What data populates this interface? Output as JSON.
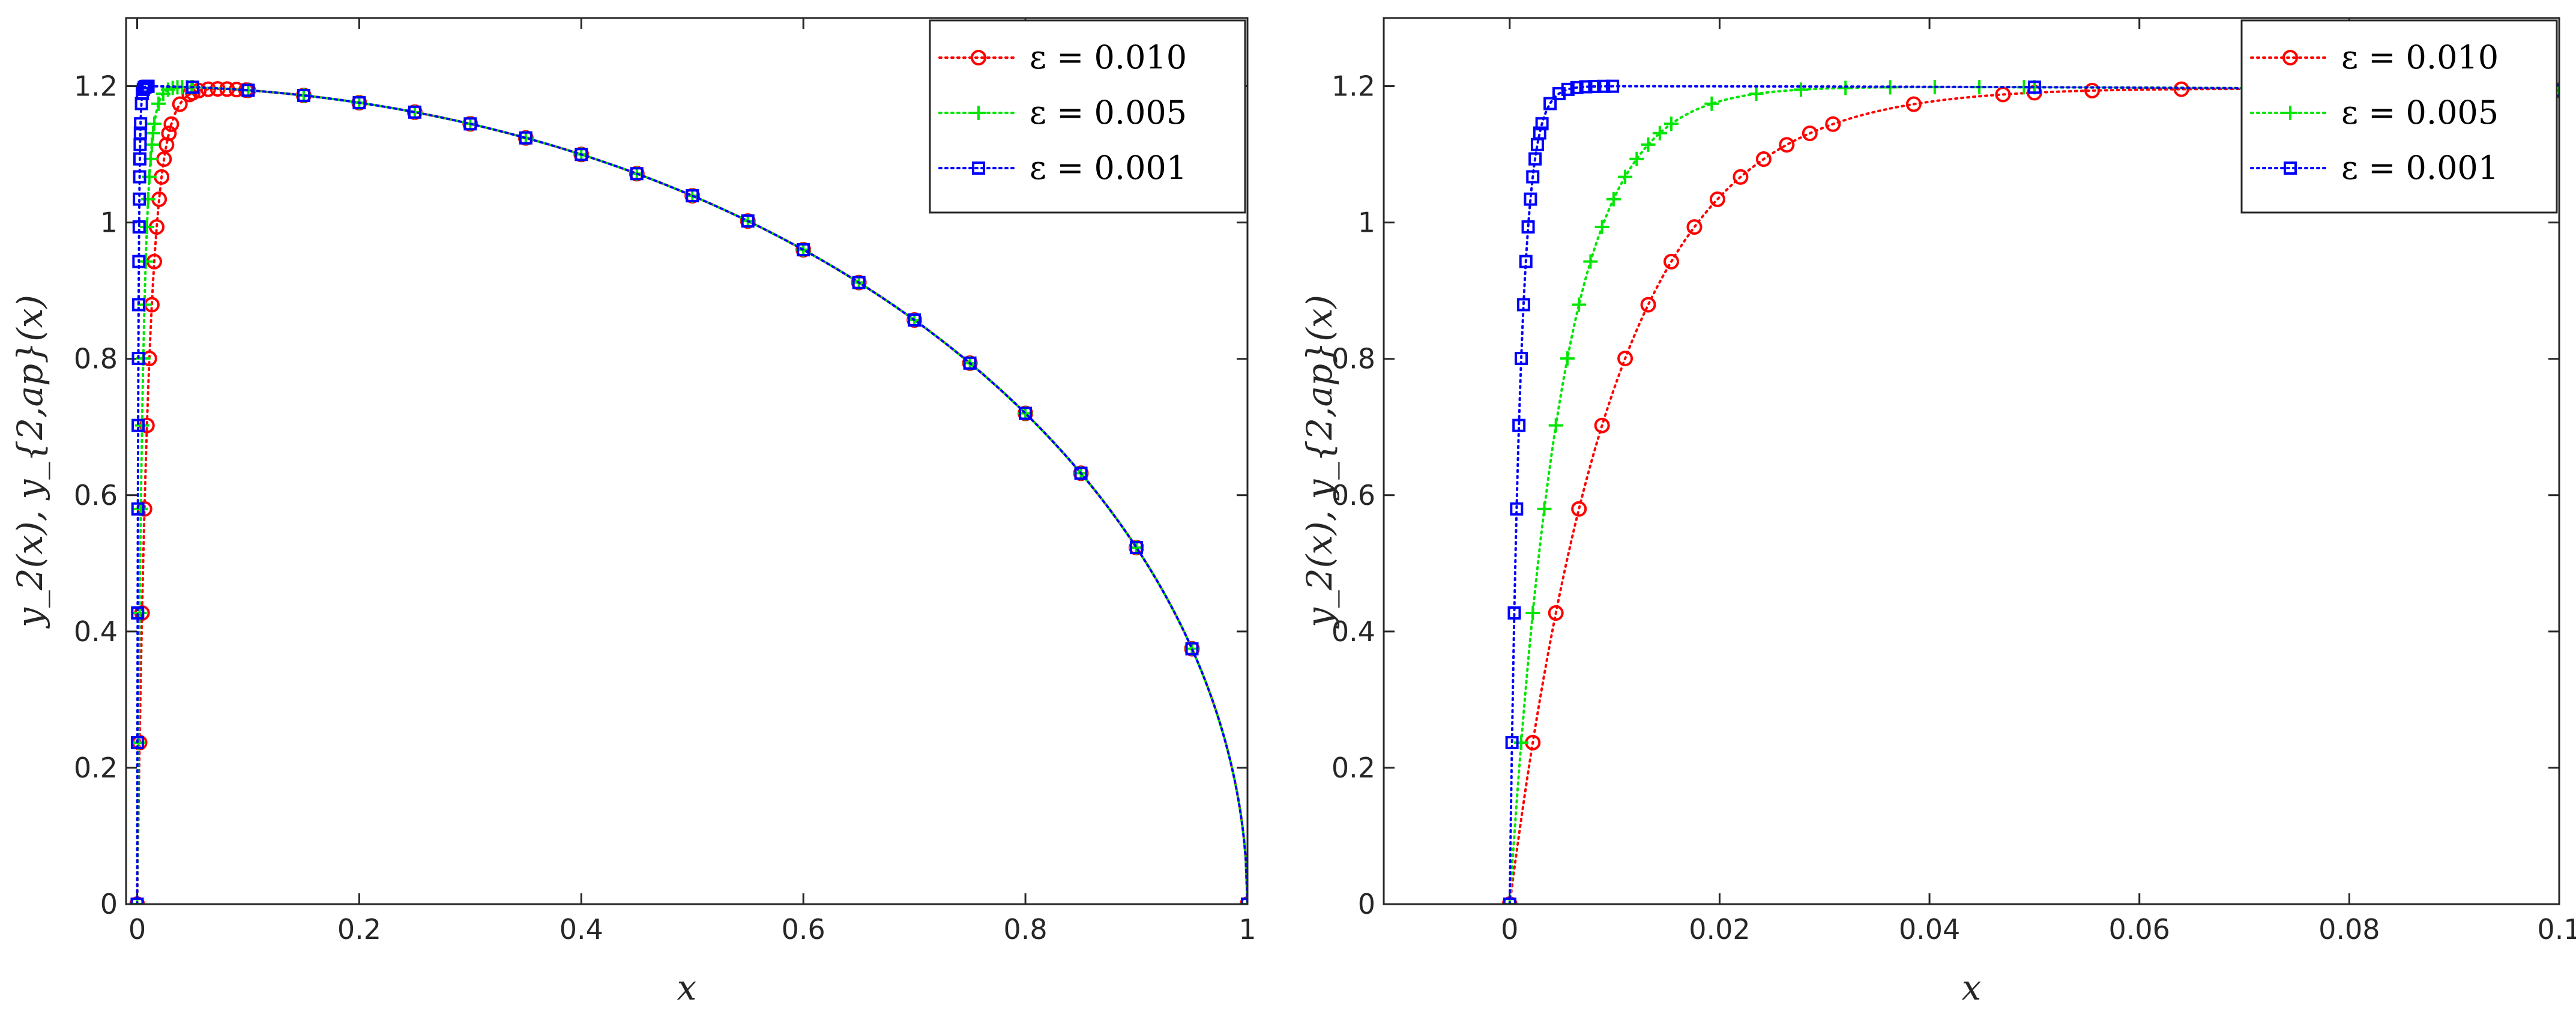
{
  "figure": {
    "panels": 2
  },
  "chart_data": [
    {
      "type": "line",
      "panel": "left",
      "title": "",
      "xlabel": "x",
      "ylabel": "y_2(x), y_{2,ap}(x)",
      "xlim": [
        -0.01,
        1.0
      ],
      "ylim": [
        0,
        1.3
      ],
      "xticks": [
        0,
        0.2,
        0.4,
        0.6,
        0.8,
        1
      ],
      "xtick_labels": [
        "0",
        "0.2",
        "0.4",
        "0.6",
        "0.8",
        "1"
      ],
      "yticks": [
        0,
        0.2,
        0.4,
        0.6,
        0.8,
        1,
        1.2
      ],
      "ytick_labels": [
        "0",
        "0.2",
        "0.4",
        "0.6",
        "0.8",
        "1",
        "1.2"
      ],
      "grid": false,
      "legend_position": "top-right",
      "series": [
        {
          "name": "ε = 0.010",
          "eps": 0.01,
          "color": "#ff0000",
          "marker": "circle",
          "linestyle": "dotted"
        },
        {
          "name": "ε = 0.005",
          "eps": 0.005,
          "color": "#00e600",
          "marker": "plus",
          "linestyle": "dotted"
        },
        {
          "name": "ε = 0.001",
          "eps": 0.001,
          "color": "#0000ff",
          "marker": "square",
          "linestyle": "dotted"
        }
      ],
      "model": "y2(x) ≈ 1.2·sqrt(1 - x^2)·(1 - e^(-x/ε)); markers dense near x=0, then every 0.05"
    },
    {
      "type": "line",
      "panel": "right",
      "title": "",
      "xlabel": "x",
      "ylabel": "y_2(x), y_{2,ap}(x)",
      "xlim": [
        -0.012,
        0.1
      ],
      "ylim": [
        0,
        1.3
      ],
      "xticks": [
        0,
        0.02,
        0.04,
        0.06,
        0.08,
        0.1
      ],
      "xtick_labels": [
        "0",
        "0.02",
        "0.04",
        "0.06",
        "0.08",
        "0.1"
      ],
      "yticks": [
        0,
        0.2,
        0.4,
        0.6,
        0.8,
        1,
        1.2
      ],
      "ytick_labels": [
        "0",
        "0.2",
        "0.4",
        "0.6",
        "0.8",
        "1",
        "1.2"
      ],
      "grid": false,
      "legend_position": "top-right",
      "series": [
        {
          "name": "ε = 0.010",
          "eps": 0.01,
          "color": "#ff0000",
          "marker": "circle",
          "linestyle": "dotted"
        },
        {
          "name": "ε = 0.005",
          "eps": 0.005,
          "color": "#00e600",
          "marker": "plus",
          "linestyle": "dotted"
        },
        {
          "name": "ε = 0.001",
          "eps": 0.001,
          "color": "#0000ff",
          "marker": "square",
          "linestyle": "dotted"
        }
      ],
      "model": "zoom of the boundary layer near x = 0"
    }
  ]
}
